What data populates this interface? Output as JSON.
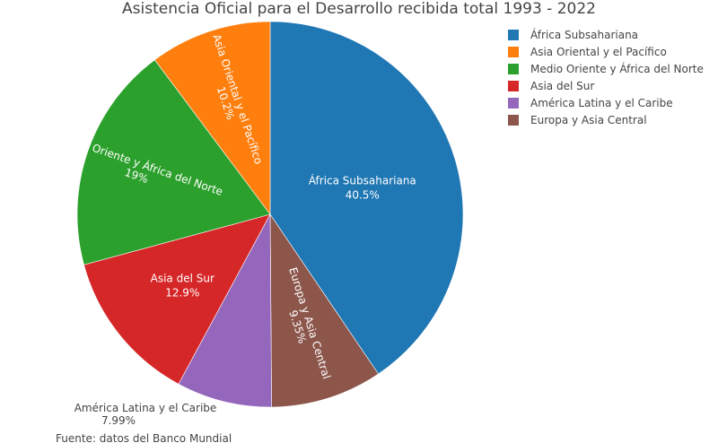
{
  "chart_data": {
    "type": "pie",
    "title": "Asistencia Oficial para el Desarrollo recibida total 1993 - 2022",
    "categories": [
      "África Subsahariana",
      "Europa y Asia Central",
      "América Latina y el Caribe",
      "Asia del Sur",
      "Medio Oriente y África del Norte",
      "Asia Oriental y el Pacífico"
    ],
    "values": [
      40.5,
      9.35,
      7.99,
      12.9,
      19,
      10.2
    ],
    "value_labels": [
      "40.5%",
      "9.35%",
      "7.99%",
      "12.9%",
      "19%",
      "10.2%"
    ],
    "colors": [
      "#1f77b4",
      "#8c564b",
      "#9467bd",
      "#d62728",
      "#2ca02c",
      "#ff7f0e"
    ],
    "legend_order": [
      "África Subsahariana",
      "Asia Oriental y el Pacífico",
      "Medio Oriente y África del Norte",
      "Asia del Sur",
      "América Latina y el Caribe",
      "Europa y Asia Central"
    ],
    "legend_placement": "top-right",
    "direction": "clockwise",
    "start": "top"
  },
  "source_note": "Fuente: datos del Banco Mundial"
}
